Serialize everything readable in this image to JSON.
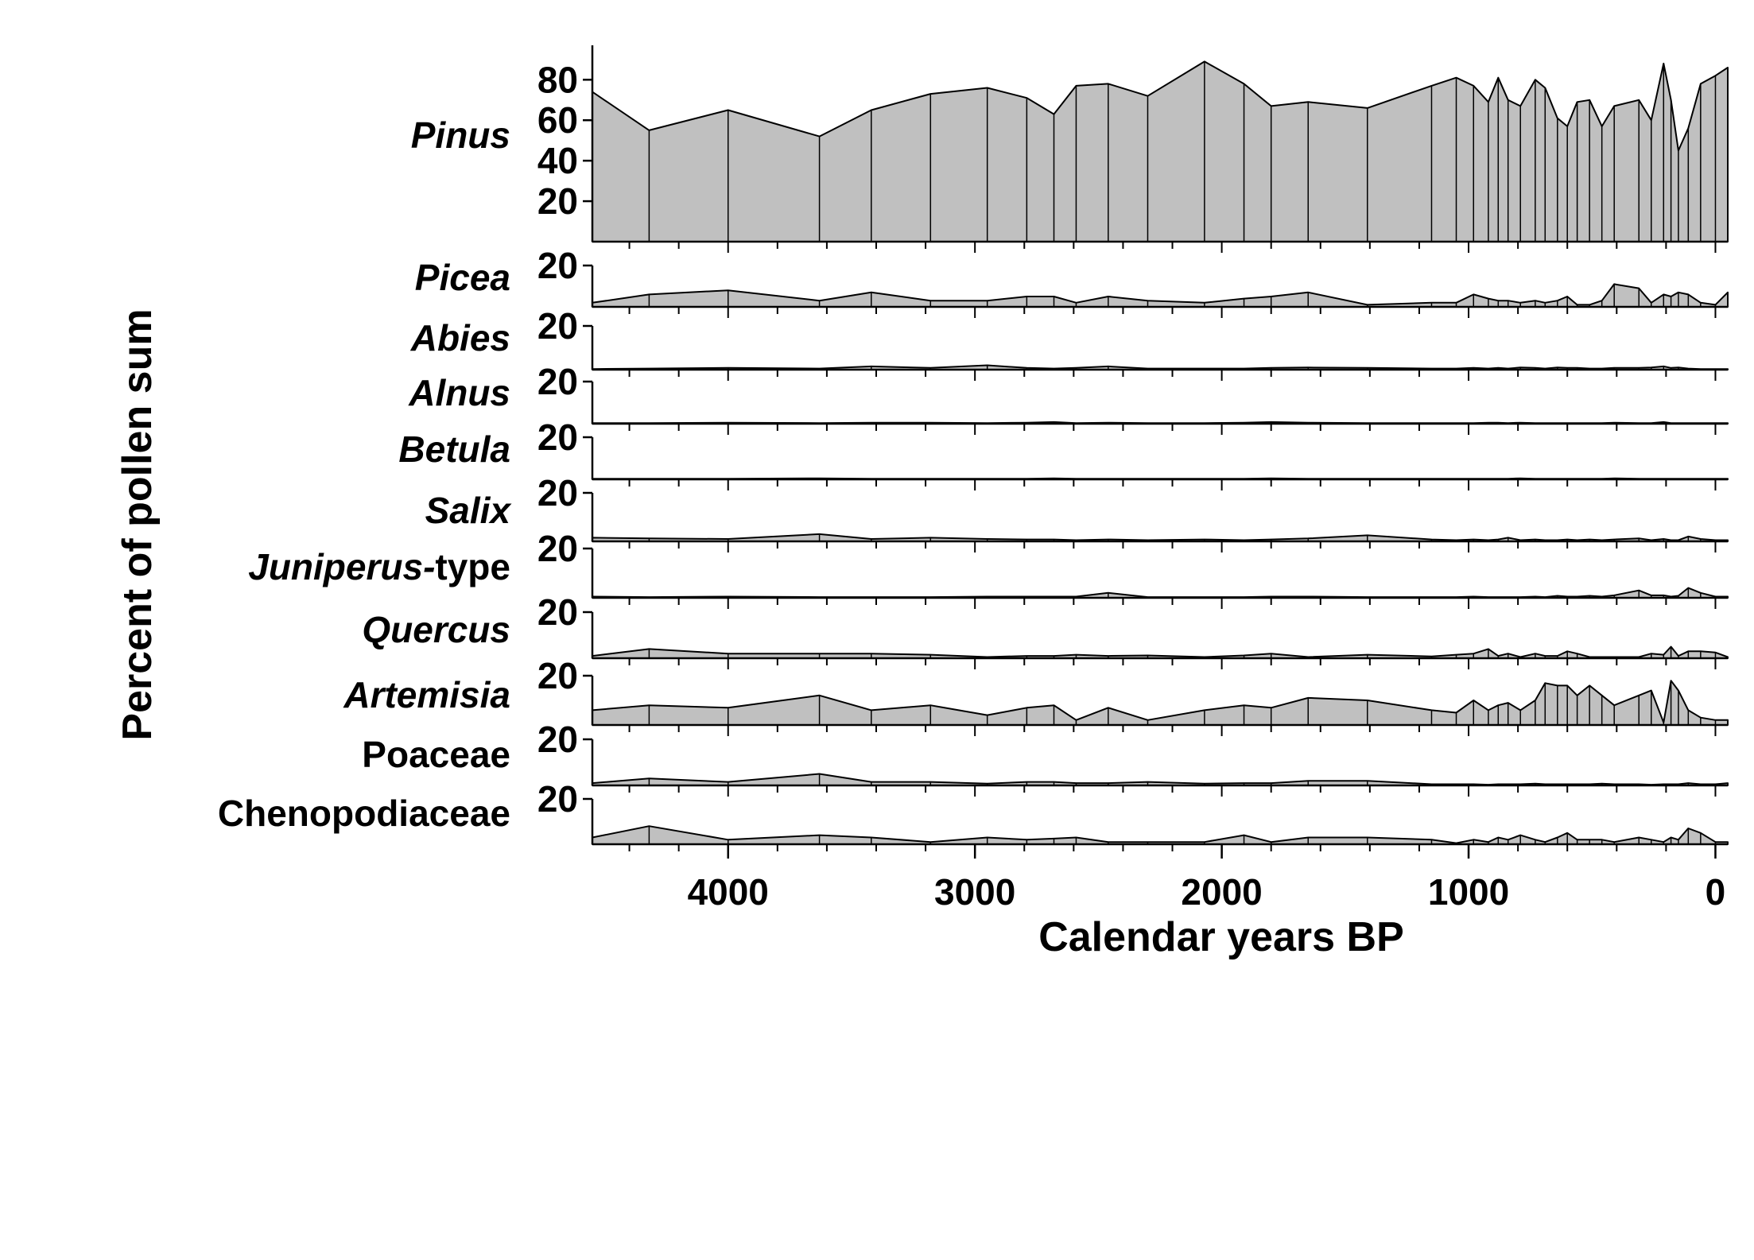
{
  "chart_data": {
    "type": "area",
    "xlabel": "Calendar years BP",
    "ylabel": "Percent of pollen sum",
    "xlim": [
      4550,
      -50
    ],
    "x_ticks": [
      4000,
      3000,
      2000,
      1000,
      0
    ],
    "x_tick_labels": [
      "4000",
      "3000",
      "2000",
      "1000",
      "0"
    ],
    "x_minor_step": 200,
    "sample_x": [
      4550,
      4320,
      4000,
      3630,
      3420,
      3180,
      2950,
      2790,
      2680,
      2590,
      2460,
      2300,
      2070,
      1910,
      1800,
      1650,
      1410,
      1150,
      1050,
      980,
      920,
      880,
      840,
      790,
      730,
      690,
      640,
      600,
      560,
      510,
      460,
      410,
      310,
      260,
      210,
      180,
      150,
      110,
      60,
      0,
      -50
    ],
    "series": [
      {
        "name": "Pinus",
        "style": "italic",
        "ylim": [
          0,
          97
        ],
        "y_ticks": [
          20,
          40,
          60,
          80
        ],
        "y_tick_labels": [
          "20",
          "40",
          "60",
          "80"
        ],
        "values": [
          74,
          55,
          65,
          52,
          65,
          73,
          76,
          71,
          63,
          77,
          78,
          72,
          89,
          78,
          67,
          69,
          66,
          77,
          81,
          77,
          69,
          81,
          70,
          67,
          80,
          76,
          61,
          57,
          69,
          70,
          57,
          67,
          70,
          60,
          88,
          70,
          45,
          56,
          78,
          82,
          86
        ]
      },
      {
        "name": "Picea",
        "style": "italic",
        "ylim": [
          0,
          20
        ],
        "y_ticks": [
          20
        ],
        "y_tick_labels": [
          "20"
        ],
        "values": [
          2,
          6,
          8,
          3,
          7,
          3,
          3,
          5,
          5,
          2,
          5,
          3,
          2,
          4,
          5,
          7,
          1,
          2,
          2,
          6,
          4,
          3,
          3,
          2,
          3,
          2,
          3,
          5,
          1,
          1,
          3,
          11,
          9,
          2,
          6,
          5,
          7,
          6,
          2,
          1,
          7
        ]
      },
      {
        "name": "Abies",
        "style": "italic",
        "ylim": [
          0,
          20
        ],
        "y_ticks": [
          20
        ],
        "y_tick_labels": [
          "20"
        ],
        "values": [
          0.3,
          0.5,
          0.8,
          0.5,
          1.5,
          0.8,
          2,
          0.8,
          0.5,
          0.8,
          1.5,
          0.5,
          0.5,
          0.5,
          0.8,
          1,
          0.8,
          0.5,
          0.5,
          0.8,
          0.5,
          0.8,
          0.5,
          1,
          0.8,
          0.5,
          1,
          0.8,
          0.8,
          0.5,
          0.5,
          0.8,
          0.8,
          1,
          1.5,
          0.8,
          1,
          0.5,
          0.3,
          0.3,
          0.3
        ]
      },
      {
        "name": "Alnus",
        "style": "italic",
        "ylim": [
          0,
          20
        ],
        "y_ticks": [
          20
        ],
        "y_tick_labels": [
          "20"
        ],
        "values": [
          0.3,
          0.3,
          0.5,
          0.3,
          0.5,
          0.5,
          0.3,
          0.5,
          0.8,
          0.3,
          0.5,
          0.3,
          0.3,
          0.5,
          0.8,
          0.5,
          0.3,
          0.3,
          0.3,
          0.3,
          0.5,
          0.5,
          0.3,
          0.5,
          0.3,
          0.3,
          0.3,
          0.3,
          0.3,
          0.3,
          0.3,
          0.5,
          0.3,
          0.3,
          0.8,
          0.3,
          0.3,
          0.3,
          0.3,
          0.3,
          0.3
        ]
      },
      {
        "name": "Betula",
        "style": "italic",
        "ylim": [
          0,
          20
        ],
        "y_ticks": [
          20
        ],
        "y_tick_labels": [
          "20"
        ],
        "values": [
          0.3,
          0.3,
          0.3,
          0.5,
          0.3,
          0.3,
          0.3,
          0.3,
          0.5,
          0.3,
          0.3,
          0.3,
          0.3,
          0.3,
          0.5,
          0.3,
          0.3,
          0.3,
          0.3,
          0.3,
          0.3,
          0.3,
          0.3,
          0.5,
          0.3,
          0.3,
          0.3,
          0.3,
          0.3,
          0.3,
          0.3,
          0.5,
          0.3,
          0.3,
          0.3,
          0.3,
          0.3,
          0.3,
          0.3,
          0.3,
          0.3
        ]
      },
      {
        "name": "Salix",
        "style": "italic",
        "ylim": [
          0,
          20
        ],
        "y_ticks": [
          20
        ],
        "y_tick_labels": [
          "20"
        ],
        "values": [
          1.5,
          1.2,
          1,
          3,
          1,
          1.5,
          1,
          0.8,
          0.8,
          0.5,
          0.8,
          0.5,
          0.8,
          0.5,
          0.8,
          1.2,
          2.5,
          0.8,
          0.5,
          0.8,
          0.5,
          0.8,
          1.5,
          0.5,
          0.8,
          0.5,
          0.5,
          0.8,
          0.5,
          0.8,
          0.5,
          0.8,
          1.2,
          0.5,
          1,
          0.5,
          0.5,
          2,
          1,
          0.5,
          0.5
        ]
      },
      {
        "name": "Juniperus-type",
        "style": "mixed",
        "ylim": [
          0,
          20
        ],
        "y_ticks": [
          20
        ],
        "y_tick_labels": [
          "20"
        ],
        "values": [
          0.5,
          0.3,
          0.5,
          0.3,
          0.3,
          0.3,
          0.5,
          0.5,
          0.5,
          0.5,
          2,
          0.3,
          0.3,
          0.3,
          0.5,
          0.5,
          0.3,
          0.3,
          0.3,
          0.5,
          0.3,
          0.3,
          0.3,
          0.3,
          0.5,
          0.3,
          0.8,
          0.5,
          0.5,
          0.8,
          0.5,
          1,
          3,
          1,
          1,
          0.5,
          0.8,
          4,
          2,
          0.5,
          0.5
        ]
      },
      {
        "name": "Quercus",
        "style": "italic",
        "ylim": [
          0,
          20
        ],
        "y_ticks": [
          20
        ],
        "y_tick_labels": [
          "20"
        ],
        "values": [
          1,
          4,
          2,
          2,
          2,
          1.5,
          0.5,
          1,
          1,
          1.5,
          1,
          1.2,
          0.5,
          1.2,
          2,
          0.5,
          1.5,
          0.8,
          1.5,
          2,
          4,
          1,
          2,
          0.5,
          2,
          1,
          1,
          3,
          2,
          0.5,
          0.5,
          0.5,
          0.5,
          2,
          1.5,
          5,
          1,
          3,
          3,
          2.5,
          0.5
        ]
      },
      {
        "name": "Artemisia",
        "style": "italic",
        "ylim": [
          0,
          20
        ],
        "y_ticks": [
          20
        ],
        "y_tick_labels": [
          "20"
        ],
        "values": [
          6,
          8,
          7,
          12,
          6,
          8,
          4,
          7,
          8,
          2,
          7,
          2,
          6,
          8,
          7,
          11,
          10,
          6,
          5,
          10,
          6,
          8,
          9,
          6,
          10,
          17,
          16,
          16,
          12,
          16,
          12,
          8,
          12,
          14,
          1,
          18,
          14,
          6,
          3,
          2,
          2
        ]
      },
      {
        "name": "Poaceae",
        "style": "normal",
        "ylim": [
          0,
          20
        ],
        "y_ticks": [
          20
        ],
        "y_tick_labels": [
          "20"
        ],
        "values": [
          1,
          3,
          1.5,
          5,
          1.5,
          1.5,
          0.8,
          1.5,
          1.5,
          1,
          1,
          1.5,
          0.8,
          1,
          1,
          2,
          2,
          0.5,
          0.5,
          0.5,
          0.3,
          0.5,
          0.5,
          0.5,
          0.8,
          0.5,
          0.5,
          0.5,
          0.5,
          0.5,
          0.8,
          0.5,
          0.5,
          0.3,
          0.5,
          0.5,
          0.5,
          1,
          0.5,
          0.5,
          1
        ]
      },
      {
        "name": "Chenopodiaceae",
        "style": "normal",
        "ylim": [
          0,
          20
        ],
        "y_ticks": [
          20
        ],
        "y_tick_labels": [
          "20"
        ],
        "values": [
          3,
          8,
          2,
          4,
          3,
          1,
          3,
          2,
          2.5,
          3,
          1,
          1,
          1,
          4,
          1,
          3,
          3,
          2,
          0.5,
          2,
          1,
          3,
          2,
          4,
          2,
          1,
          3,
          5,
          2,
          2,
          2,
          1,
          3,
          2,
          1,
          3,
          2,
          7,
          5,
          1,
          1
        ]
      }
    ]
  }
}
